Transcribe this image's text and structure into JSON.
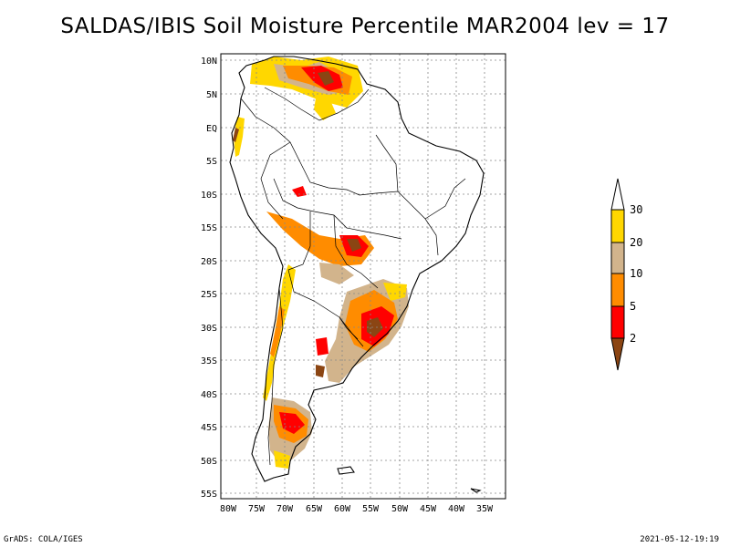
{
  "title": "SALDAS/IBIS Soil Moisture Percentile MAR2004 lev = 17",
  "footer": {
    "source": "GrADS: COLA/IGES",
    "timestamp": "2021-05-12-19:19"
  },
  "axes": {
    "lon_labels": [
      "80W",
      "75W",
      "70W",
      "65W",
      "60W",
      "55W",
      "50W",
      "45W",
      "40W",
      "35W"
    ],
    "lat_labels": [
      "10N",
      "5N",
      "EQ",
      "5S",
      "10S",
      "15S",
      "20S",
      "25S",
      "30S",
      "35S",
      "40S",
      "45S",
      "50S",
      "55S"
    ],
    "lon_range": [
      -80.5,
      -34
    ],
    "lat_range": [
      -55.5,
      11.5
    ]
  },
  "legend": {
    "labels": [
      "2",
      "5",
      "10",
      "20",
      "30"
    ],
    "colors": {
      "below_2": "#8b4513",
      "2_5": "#ff0000",
      "5_10": "#ff8c00",
      "10_20": "#d2b48c",
      "20_30": "#ffd700",
      "above_30": "#ffffff"
    }
  }
}
